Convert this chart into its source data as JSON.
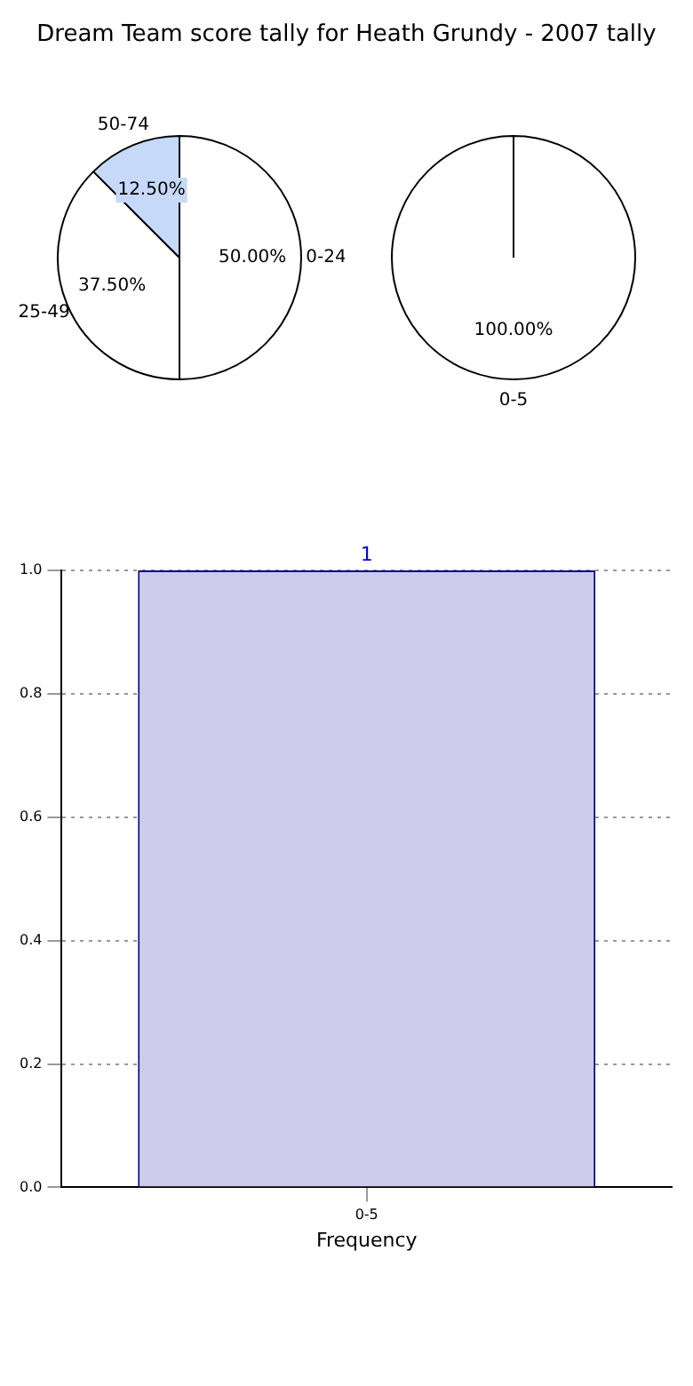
{
  "chart_data": [
    {
      "type": "pie",
      "title": "Dream Team score tally for Heath Grundy - 2007 tally",
      "categories": [
        "0-24",
        "25-49",
        "50-74"
      ],
      "values": [
        50,
        37.5,
        12.5
      ],
      "colors": [
        "#ffffff",
        "#ffffff",
        "#c6d9f8"
      ],
      "value_labels": [
        "50.00%",
        "37.50%",
        "12.50%"
      ]
    },
    {
      "type": "pie",
      "categories": [
        "0-5"
      ],
      "values": [
        100
      ],
      "colors": [
        "#ffffff"
      ],
      "value_labels": [
        "100.00%"
      ]
    },
    {
      "type": "bar",
      "categories": [
        "0-5"
      ],
      "values": [
        1
      ],
      "color": "#ccccea",
      "xlabel": "Frequency",
      "ylim": [
        0,
        1
      ],
      "yticks": [
        {
          "value": 0,
          "label": "0.0"
        },
        {
          "value": 0.2,
          "label": "0.2"
        },
        {
          "value": 0.4,
          "label": "0.4"
        },
        {
          "value": 0.6,
          "label": "0.6"
        },
        {
          "value": 0.8,
          "label": "0.8"
        },
        {
          "value": 1,
          "label": "1.0"
        }
      ],
      "grid": true,
      "data_labels": true
    }
  ]
}
